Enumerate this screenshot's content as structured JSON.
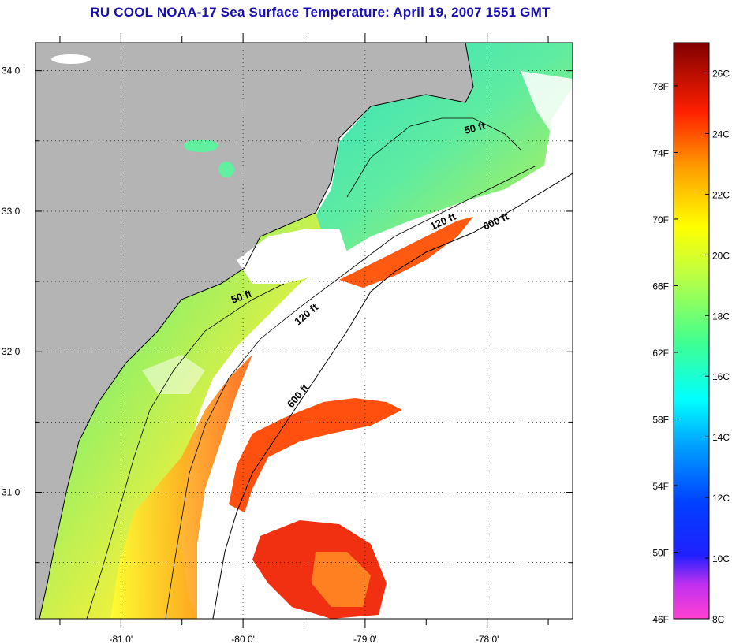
{
  "title": "RU COOL  NOAA-17  Sea Surface Temperature:  April 19, 2007 1551 GMT",
  "map": {
    "lat_range": [
      30.1,
      34.2
    ],
    "lon_range": [
      -81.7,
      -77.3
    ],
    "lat_ticks": [
      {
        "value": 34.0,
        "label": "34 0'"
      },
      {
        "value": 33.0,
        "label": "33 0'"
      },
      {
        "value": 32.0,
        "label": "32 0'"
      },
      {
        "value": 31.0,
        "label": "31 0'"
      }
    ],
    "lon_ticks": [
      {
        "value": -81.0,
        "label": "-81 0'"
      },
      {
        "value": -80.0,
        "label": "-80 0'"
      },
      {
        "value": -79.0,
        "label": "-79 0'"
      },
      {
        "value": -78.0,
        "label": "-78 0'"
      }
    ],
    "grid": "dotted",
    "land_color": "#b4b4b4",
    "no_data_color": "#ffffff",
    "isobaths": [
      {
        "label": "50 ft"
      },
      {
        "label": "50 ft"
      },
      {
        "label": "120 ft"
      },
      {
        "label": "120 ft"
      },
      {
        "label": "600 ft"
      },
      {
        "label": "600 ft"
      }
    ]
  },
  "colorbar": {
    "f_labels": [
      "78F",
      "74F",
      "70F",
      "66F",
      "62F",
      "58F",
      "54F",
      "50F",
      "46F"
    ],
    "c_labels": [
      "26C",
      "24C",
      "22C",
      "20C",
      "18C",
      "16C",
      "14C",
      "12C",
      "10C",
      "8C"
    ],
    "colors": [
      "#ff3cc8",
      "#a020f0",
      "#0000ff",
      "#00a0ff",
      "#00ffff",
      "#40ff80",
      "#c0ff40",
      "#ffff00",
      "#ffa000",
      "#ff4000",
      "#e00000",
      "#800000"
    ]
  }
}
